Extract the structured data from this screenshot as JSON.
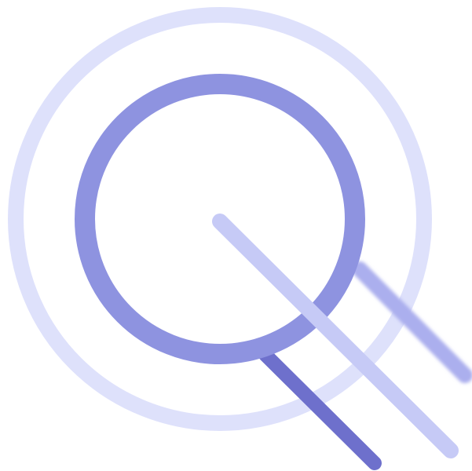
{
  "illustration": {
    "icon": "magnifier-target-icon",
    "colors": {
      "outer_ring": "#DEE1FB",
      "inner_ring": "#8E93E0",
      "handle_light": "#C6CAF6",
      "handle_dark": "#6E70CC",
      "handle_blur": "#ABAFEE"
    }
  }
}
